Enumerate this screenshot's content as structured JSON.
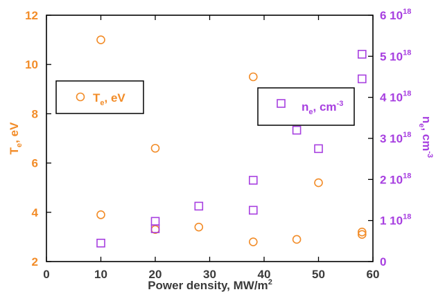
{
  "chart_data": {
    "type": "scatter",
    "x_label": "Power density, MW/m",
    "x_label_sup": "2",
    "x_ticks": [
      "0",
      "10",
      "20",
      "30",
      "40",
      "50",
      "60"
    ],
    "xlim": [
      0,
      60
    ],
    "y_left": {
      "label": "T",
      "label_sub": "e",
      "label_suffix": ", eV",
      "ticks": [
        "2",
        "4",
        "6",
        "8",
        "10",
        "12"
      ],
      "lim": [
        2,
        12
      ],
      "color": "#f28c28"
    },
    "y_right": {
      "label": "n",
      "label_sub": "e",
      "label_suffix": ", cm",
      "label_sup": "-3",
      "ticks": [
        {
          "mant": "0",
          "exp": ""
        },
        {
          "mant": "1 10",
          "exp": "18"
        },
        {
          "mant": "2 10",
          "exp": "18"
        },
        {
          "mant": "3 10",
          "exp": "18"
        },
        {
          "mant": "4 10",
          "exp": "18"
        },
        {
          "mant": "5 10",
          "exp": "18"
        },
        {
          "mant": "6 10",
          "exp": "18"
        }
      ],
      "lim": [
        0,
        6e+18
      ],
      "color": "#a73fe0"
    },
    "series": [
      {
        "name": "T",
        "name_sub": "e",
        "name_suffix": ", eV",
        "marker": "circle",
        "axis": "left",
        "color": "#f28c28",
        "points": [
          [
            10,
            11.0
          ],
          [
            10,
            3.9
          ],
          [
            20,
            6.6
          ],
          [
            20,
            3.3
          ],
          [
            28,
            3.4
          ],
          [
            38,
            9.5
          ],
          [
            38,
            2.8
          ],
          [
            46,
            2.9
          ],
          [
            50,
            5.2
          ],
          [
            58,
            3.2
          ],
          [
            58,
            3.1
          ]
        ]
      },
      {
        "name": "n",
        "name_sub": "e",
        "name_suffix": ", cm",
        "name_sup": "-3",
        "marker": "square",
        "axis": "right",
        "color": "#a73fe0",
        "points": [
          [
            10,
            4.5e+17
          ],
          [
            20,
            9.8e+17
          ],
          [
            20,
            8e+17
          ],
          [
            28,
            1.35e+18
          ],
          [
            38,
            1.98e+18
          ],
          [
            38,
            1.25e+18
          ],
          [
            44,
            3.9e+18
          ],
          [
            46,
            3.2e+18
          ],
          [
            50,
            2.75e+18
          ],
          [
            58,
            5.05e+18
          ],
          [
            58,
            4.45e+18
          ]
        ]
      }
    ]
  }
}
